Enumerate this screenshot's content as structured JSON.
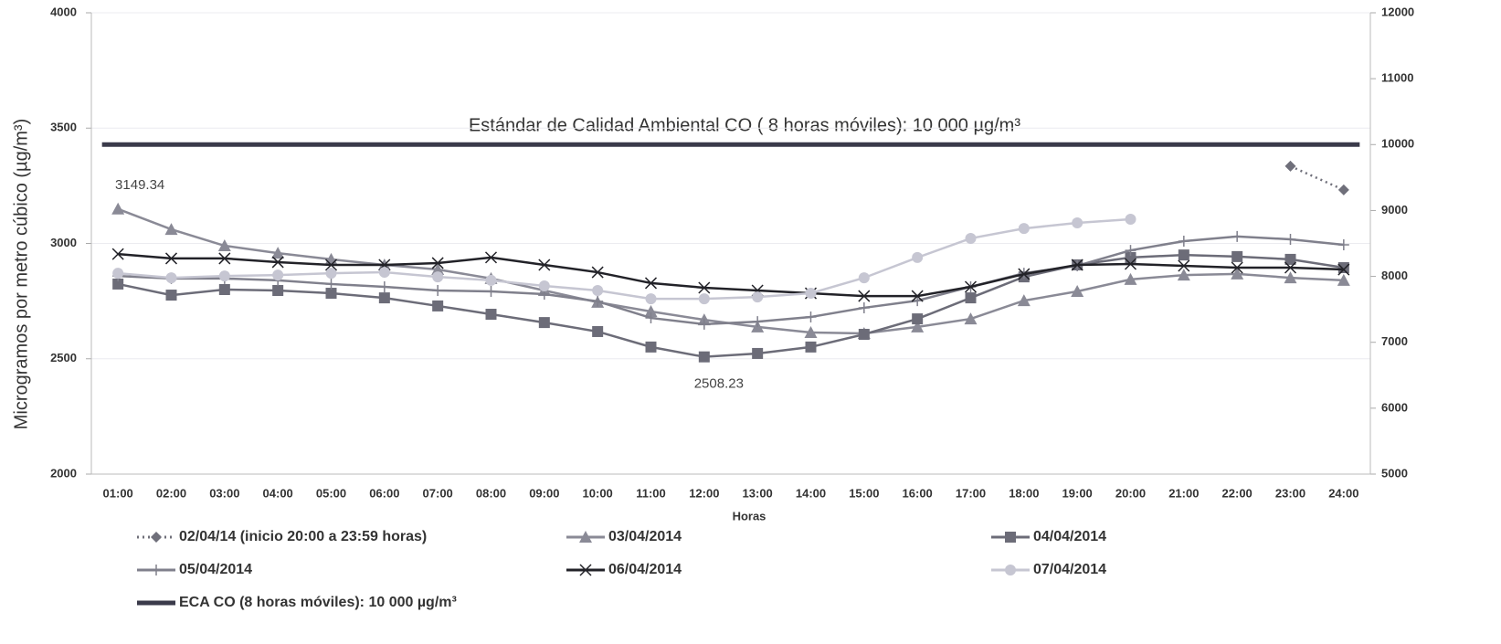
{
  "chart_data": {
    "type": "line",
    "y_label": "Microgramos por metro cúbico (µg/m³)",
    "x_label": "Horas",
    "annotation": "Estándar de Calidad Ambiental  CO ( 8 horas móviles): 10 000 µg/m³",
    "categories": [
      "01:00",
      "02:00",
      "03:00",
      "04:00",
      "05:00",
      "06:00",
      "07:00",
      "08:00",
      "09:00",
      "10:00",
      "11:00",
      "12:00",
      "13:00",
      "14:00",
      "15:00",
      "16:00",
      "17:00",
      "18:00",
      "19:00",
      "20:00",
      "21:00",
      "22:00",
      "23:00",
      "24:00"
    ],
    "ylim": [
      2000,
      4000
    ],
    "yticks": [
      2000,
      2500,
      3000,
      3500,
      4000
    ],
    "y2lim": [
      5000,
      12000
    ],
    "y2ticks": [
      5000,
      6000,
      7000,
      8000,
      9000,
      10000,
      11000,
      12000
    ],
    "grid": true,
    "series": [
      {
        "name": "02/04/14 (inicio  20:00 a 23:59 horas)",
        "color": "#6f6f7a",
        "marker": "diamond",
        "dash": "dotted",
        "values": [
          null,
          null,
          null,
          null,
          null,
          null,
          null,
          null,
          null,
          null,
          null,
          null,
          null,
          null,
          null,
          null,
          null,
          null,
          null,
          null,
          null,
          null,
          3335,
          3232
        ]
      },
      {
        "name": "03/04/2014",
        "color": "#8a8a96",
        "marker": "triangle",
        "values": [
          3149.34,
          3061,
          2990,
          2958,
          2931,
          2907,
          2887,
          2848,
          2796,
          2745,
          2705,
          2669,
          2638,
          2614,
          2610,
          2638,
          2673,
          2752,
          2792,
          2844,
          2863,
          2868,
          2851,
          2840
        ]
      },
      {
        "name": "04/04/2014",
        "color": "#6c6c78",
        "marker": "square",
        "values": [
          2824,
          2776,
          2800,
          2796,
          2784,
          2764,
          2729,
          2693,
          2657,
          2618,
          2551,
          2508.23,
          2523,
          2551,
          2606,
          2673,
          2764,
          2855,
          2907,
          2939,
          2950,
          2943,
          2931,
          2895
        ]
      },
      {
        "name": "05/04/2014",
        "color": "#80808c",
        "marker": "plus",
        "values": [
          2859,
          2848,
          2848,
          2840,
          2824,
          2812,
          2796,
          2792,
          2780,
          2749,
          2677,
          2650,
          2661,
          2681,
          2721,
          2752,
          2812,
          2871,
          2903,
          2970,
          3010,
          3030,
          3018,
          2994
        ]
      },
      {
        "name": "06/04/2014",
        "color": "#222228",
        "marker": "x",
        "values": [
          2954,
          2935,
          2935,
          2919,
          2907,
          2907,
          2915,
          2939,
          2907,
          2875,
          2828,
          2808,
          2796,
          2784,
          2772,
          2772,
          2812,
          2867,
          2907,
          2911,
          2903,
          2895,
          2895,
          2887
        ]
      },
      {
        "name": "07/04/2014",
        "color": "#c6c6d2",
        "marker": "circle",
        "values": [
          2871,
          2851,
          2859,
          2863,
          2871,
          2875,
          2855,
          2840,
          2816,
          2796,
          2760,
          2760,
          2768,
          2784,
          2851,
          2939,
          3022,
          3065,
          3089,
          3105,
          null,
          null,
          null,
          null
        ]
      },
      {
        "name": "ECA CO (8 horas móviles): 10 000 µg/m³",
        "color": "#3a3a4a",
        "axis": "y2",
        "width": 5,
        "values": [
          10000,
          10000,
          10000,
          10000,
          10000,
          10000,
          10000,
          10000,
          10000,
          10000,
          10000,
          10000,
          10000,
          10000,
          10000,
          10000,
          10000,
          10000,
          10000,
          10000,
          10000,
          10000,
          10000,
          10000
        ]
      }
    ]
  }
}
